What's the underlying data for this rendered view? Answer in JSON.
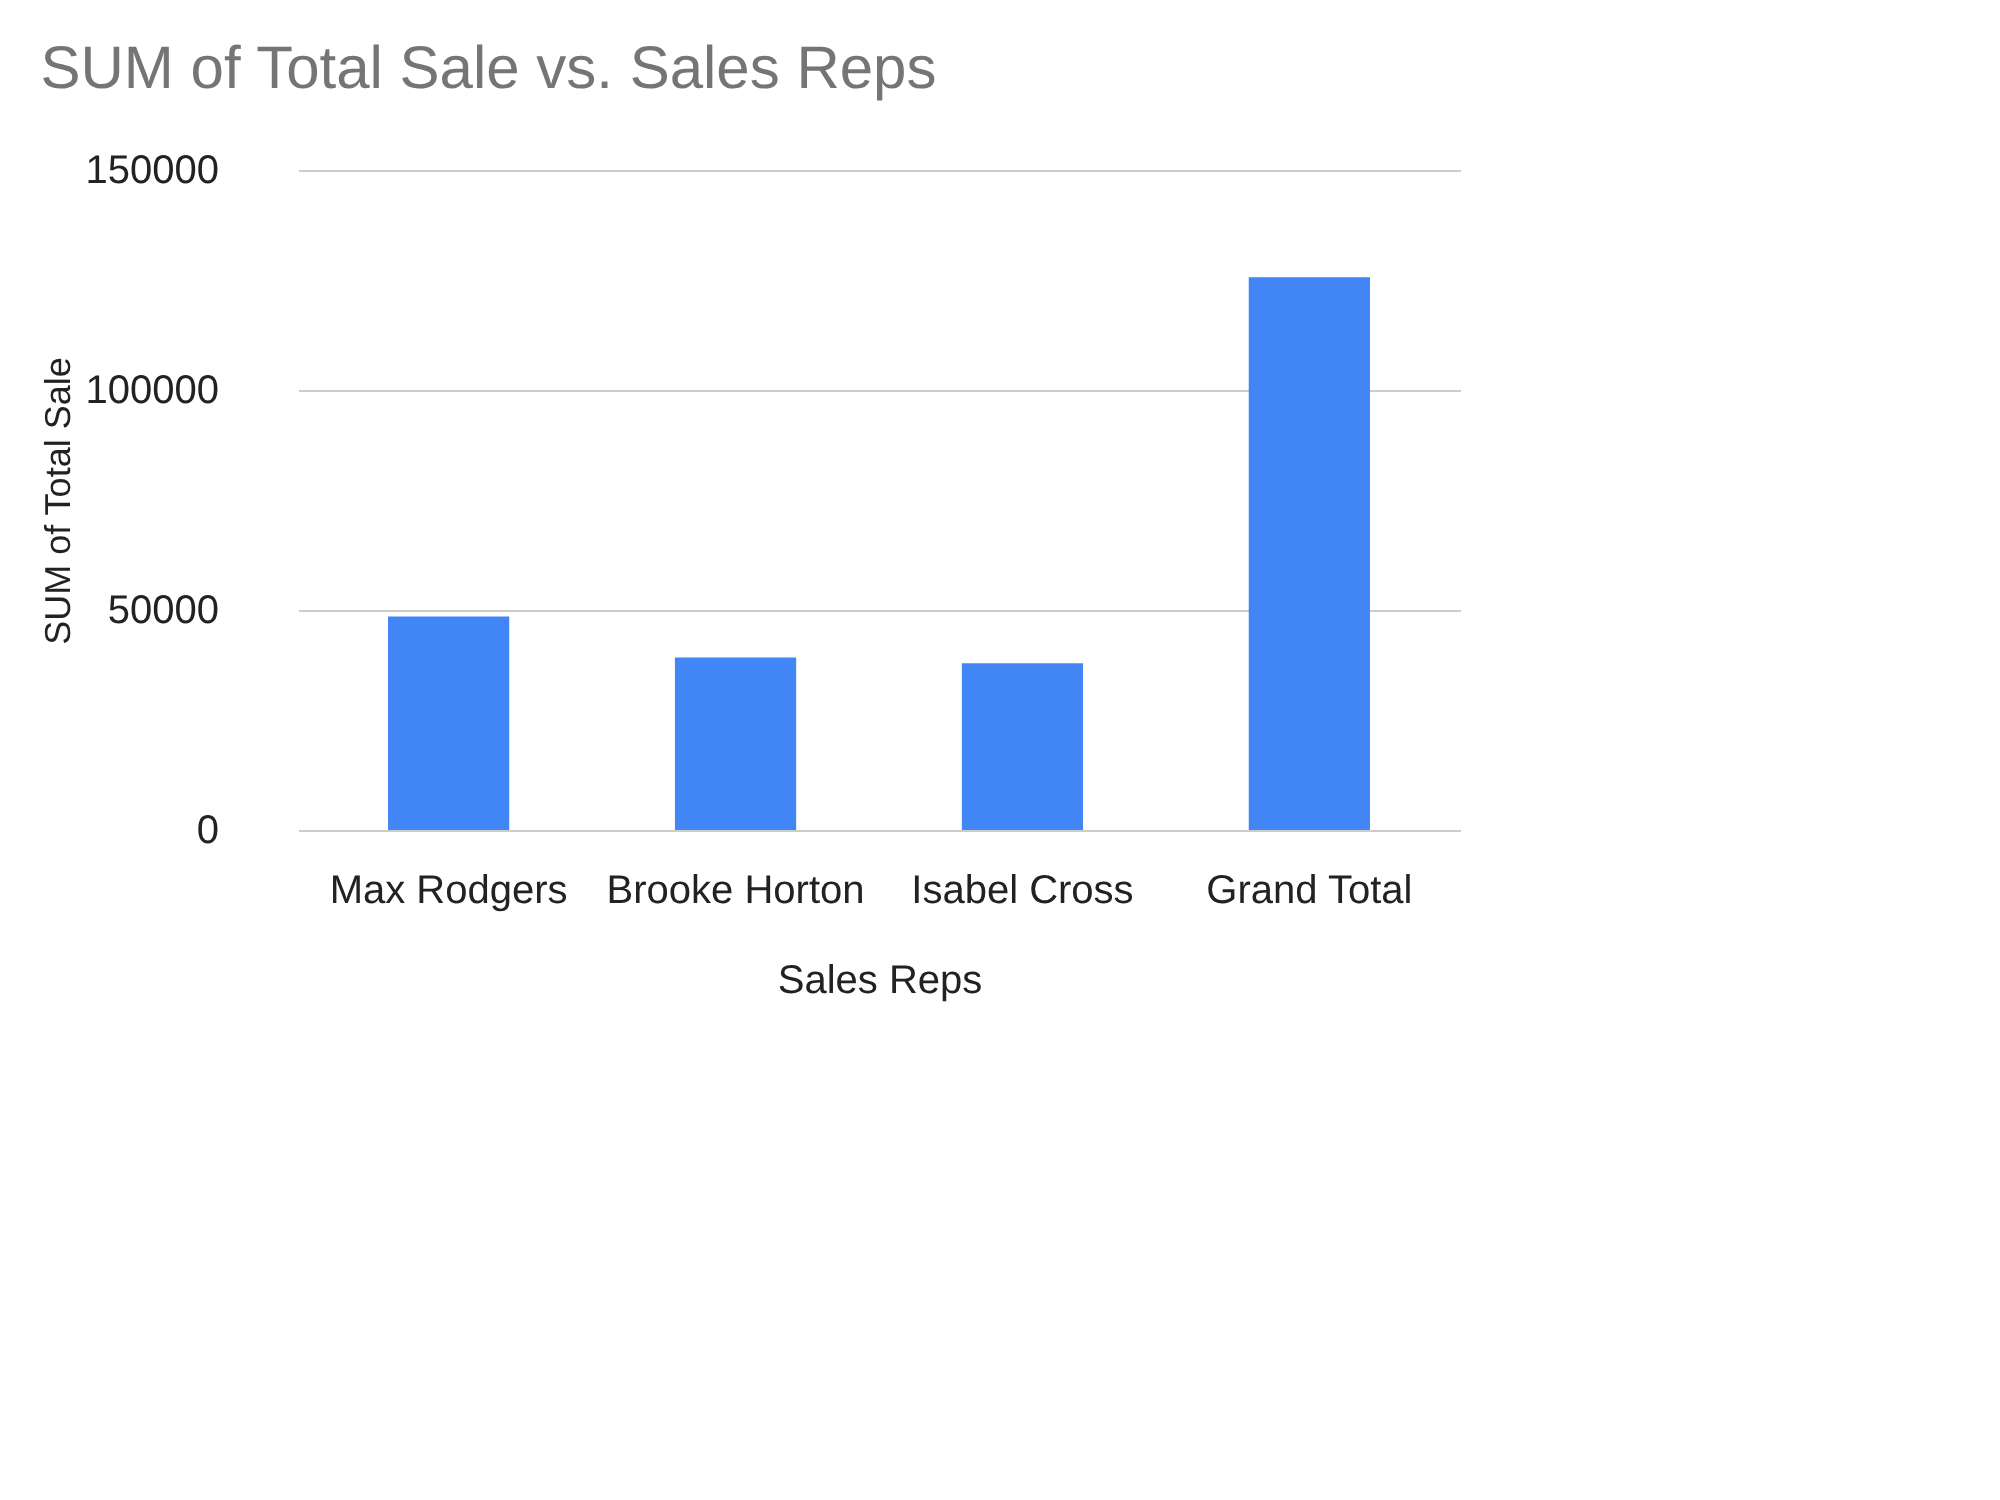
{
  "chart_data": {
    "type": "bar",
    "title": "SUM of Total Sale vs. Sales Reps",
    "xlabel": "Sales Reps",
    "ylabel": "SUM of Total Sale",
    "categories": [
      "Max  Rodgers",
      "Brooke  Horton",
      "Isabel  Cross",
      "Grand Total"
    ],
    "values": [
      48500,
      39200,
      37900,
      125600
    ],
    "color": "#4285f4",
    "ylim": [
      0,
      150000
    ],
    "yticks": [
      0,
      50000,
      100000,
      150000
    ],
    "grid": "y"
  }
}
